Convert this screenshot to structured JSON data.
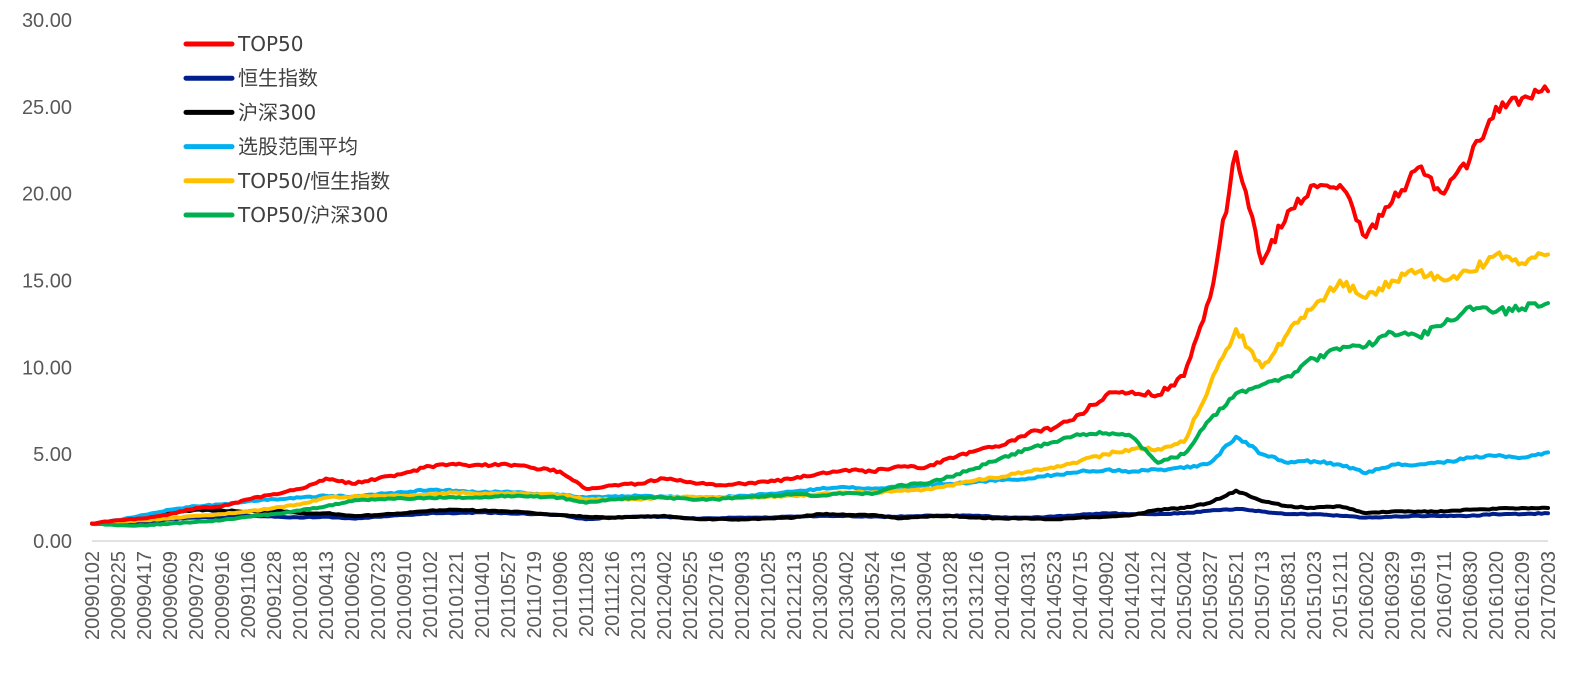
{
  "chart_data": {
    "type": "line",
    "title": "",
    "xlabel": "",
    "ylabel": "",
    "ylim": [
      0,
      30
    ],
    "y_ticks": [
      "0.00",
      "5.00",
      "10.00",
      "15.00",
      "20.00",
      "25.00",
      "30.00"
    ],
    "grid": false,
    "legend_position": "top-left",
    "x_tick_labels": [
      "20090102",
      "20090225",
      "20090417",
      "20090609",
      "20090729",
      "20090916",
      "20091106",
      "20091228",
      "20100218",
      "20100413",
      "20100602",
      "20100723",
      "20100910",
      "20101102",
      "20101221",
      "20110401",
      "20110527",
      "20110719",
      "20110906",
      "20111028",
      "20111216",
      "20120213",
      "20120402",
      "20120525",
      "20120716",
      "20120903",
      "20121025",
      "20121213",
      "20130205",
      "20130402",
      "20130524",
      "20130716",
      "20130904",
      "20131028",
      "20131216",
      "20140210",
      "20140331",
      "20140523",
      "20140715",
      "20140902",
      "20141024",
      "20141212",
      "20150204",
      "20150327",
      "20150521",
      "20150713",
      "20150831",
      "20151023",
      "20151211",
      "20160202",
      "20160329",
      "20160519",
      "20160711",
      "20160830",
      "20161020",
      "20161209",
      "20170203"
    ],
    "series": [
      {
        "name": "TOP50",
        "color": "#ff0000",
        "values": [
          1.0,
          1.2,
          1.3,
          1.55,
          1.9,
          2.0,
          2.4,
          2.7,
          3.0,
          3.6,
          3.3,
          3.6,
          3.9,
          4.3,
          4.4,
          4.35,
          4.4,
          4.2,
          4.0,
          3.0,
          3.2,
          3.3,
          3.6,
          3.4,
          3.2,
          3.3,
          3.4,
          3.6,
          3.9,
          4.1,
          4.0,
          4.3,
          4.2,
          4.8,
          5.2,
          5.5,
          6.2,
          6.5,
          7.3,
          8.4,
          8.6,
          8.4,
          9.5,
          14.0,
          22.4,
          16.0,
          19.0,
          20.5,
          20.5,
          17.5,
          19.5,
          21.5,
          20.0,
          22.0,
          25.0,
          25.5,
          25.9
        ]
      },
      {
        "name": "恒生指数",
        "color": "#001f8c",
        "values": [
          1.0,
          1.05,
          1.1,
          1.25,
          1.35,
          1.4,
          1.45,
          1.4,
          1.35,
          1.4,
          1.3,
          1.4,
          1.5,
          1.6,
          1.6,
          1.65,
          1.6,
          1.55,
          1.5,
          1.25,
          1.35,
          1.4,
          1.4,
          1.3,
          1.3,
          1.35,
          1.35,
          1.4,
          1.45,
          1.45,
          1.4,
          1.4,
          1.45,
          1.45,
          1.45,
          1.35,
          1.35,
          1.4,
          1.5,
          1.6,
          1.55,
          1.55,
          1.6,
          1.75,
          1.85,
          1.7,
          1.55,
          1.55,
          1.45,
          1.35,
          1.4,
          1.45,
          1.45,
          1.45,
          1.55,
          1.55,
          1.6
        ]
      },
      {
        "name": "沪深300",
        "color": "#000000",
        "values": [
          1.0,
          1.15,
          1.4,
          1.6,
          1.8,
          1.75,
          1.7,
          1.75,
          1.6,
          1.6,
          1.45,
          1.5,
          1.6,
          1.75,
          1.8,
          1.75,
          1.7,
          1.6,
          1.5,
          1.4,
          1.35,
          1.4,
          1.45,
          1.3,
          1.25,
          1.25,
          1.3,
          1.35,
          1.55,
          1.5,
          1.5,
          1.3,
          1.4,
          1.45,
          1.35,
          1.3,
          1.3,
          1.25,
          1.35,
          1.4,
          1.5,
          1.8,
          1.9,
          2.2,
          2.9,
          2.3,
          2.0,
          1.9,
          2.0,
          1.6,
          1.7,
          1.7,
          1.7,
          1.8,
          1.85,
          1.9,
          1.9
        ]
      },
      {
        "name": "选股范围平均",
        "color": "#00b0f0",
        "values": [
          1.0,
          1.2,
          1.5,
          1.8,
          2.0,
          2.1,
          2.3,
          2.4,
          2.5,
          2.6,
          2.55,
          2.7,
          2.8,
          2.95,
          2.9,
          2.8,
          2.85,
          2.7,
          2.65,
          2.5,
          2.55,
          2.6,
          2.55,
          2.5,
          2.5,
          2.6,
          2.7,
          2.85,
          3.0,
          3.1,
          3.0,
          3.1,
          3.2,
          3.3,
          3.4,
          3.5,
          3.6,
          3.8,
          4.0,
          4.1,
          4.0,
          4.1,
          4.2,
          4.5,
          6.0,
          5.0,
          4.5,
          4.6,
          4.4,
          3.9,
          4.4,
          4.4,
          4.5,
          4.8,
          4.9,
          4.8,
          5.1
        ]
      },
      {
        "name": "TOP50/恒生指数",
        "color": "#ffc000",
        "values": [
          1.0,
          1.1,
          1.2,
          1.3,
          1.45,
          1.55,
          1.7,
          1.9,
          2.1,
          2.5,
          2.55,
          2.6,
          2.6,
          2.7,
          2.8,
          2.7,
          2.75,
          2.7,
          2.65,
          2.4,
          2.4,
          2.4,
          2.5,
          2.55,
          2.5,
          2.5,
          2.55,
          2.6,
          2.7,
          2.8,
          2.8,
          2.9,
          2.95,
          3.2,
          3.5,
          3.7,
          4.0,
          4.2,
          4.6,
          5.0,
          5.3,
          5.3,
          5.7,
          9.0,
          12.2,
          10.0,
          12.0,
          13.5,
          15.0,
          14.0,
          15.0,
          15.5,
          15.0,
          15.5,
          16.5,
          16.0,
          16.5
        ]
      },
      {
        "name": "TOP50/沪深300",
        "color": "#00b050",
        "values": [
          1.0,
          0.9,
          0.9,
          1.0,
          1.1,
          1.2,
          1.4,
          1.55,
          1.75,
          2.0,
          2.3,
          2.4,
          2.45,
          2.5,
          2.5,
          2.5,
          2.6,
          2.55,
          2.5,
          2.2,
          2.4,
          2.5,
          2.5,
          2.4,
          2.4,
          2.5,
          2.6,
          2.7,
          2.6,
          2.75,
          2.7,
          3.2,
          3.3,
          3.7,
          4.2,
          4.8,
          5.3,
          5.7,
          6.1,
          6.2,
          6.0,
          4.5,
          5.0,
          7.0,
          8.5,
          9.0,
          9.5,
          10.5,
          11.0,
          11.2,
          12.0,
          11.8,
          12.5,
          13.5,
          13.2,
          13.4,
          13.7
        ]
      }
    ]
  }
}
